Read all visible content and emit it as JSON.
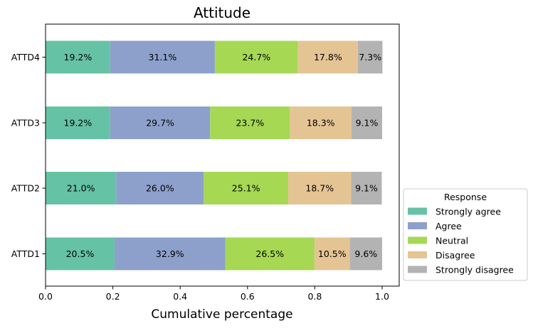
{
  "chart_data": {
    "type": "bar",
    "orientation": "horizontal",
    "stacked": true,
    "title": "Attitude",
    "xlabel": "Cumulative percentage",
    "ylabel": "",
    "xlim": [
      0,
      1
    ],
    "x_ticks": [
      "0.0",
      "0.2",
      "0.4",
      "0.6",
      "0.8",
      "1.0"
    ],
    "grid": false,
    "categories": [
      "ATTD1",
      "ATTD2",
      "ATTD3",
      "ATTD4"
    ],
    "series": [
      {
        "name": "Strongly agree",
        "color": "#66c2a5",
        "values": [
          0.205,
          0.21,
          0.192,
          0.192
        ],
        "labels": [
          "20.5%",
          "21.0%",
          "19.2%",
          "19.2%"
        ]
      },
      {
        "name": "Agree",
        "color": "#8da0cb",
        "values": [
          0.329,
          0.26,
          0.297,
          0.311
        ],
        "labels": [
          "32.9%",
          "26.0%",
          "29.7%",
          "31.1%"
        ]
      },
      {
        "name": "Neutral",
        "color": "#a6d854",
        "values": [
          0.265,
          0.251,
          0.237,
          0.247
        ],
        "labels": [
          "26.5%",
          "25.1%",
          "23.7%",
          "24.7%"
        ]
      },
      {
        "name": "Disagree",
        "color": "#e5c494",
        "values": [
          0.105,
          0.187,
          0.183,
          0.178
        ],
        "labels": [
          "10.5%",
          "18.7%",
          "18.3%",
          "17.8%"
        ]
      },
      {
        "name": "Strongly disagree",
        "color": "#b3b3b3",
        "values": [
          0.096,
          0.091,
          0.091,
          0.073
        ],
        "labels": [
          "9.6%",
          "9.1%",
          "9.1%",
          "7.3%"
        ]
      }
    ],
    "legend": {
      "title": "Response",
      "placement": "lower-right-outside"
    }
  }
}
